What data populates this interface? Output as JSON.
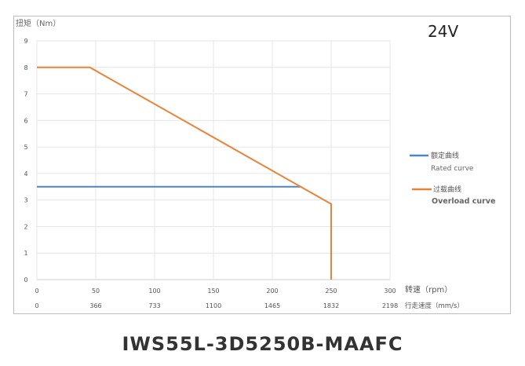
{
  "chart_data": {
    "type": "line",
    "title": "",
    "voltage_label": "24V",
    "ylabel": "扭矩（Nm）",
    "xlabel": "转速（rpm）",
    "x2label": "行走速度（mm/s）",
    "xlim": [
      0,
      300
    ],
    "ylim": [
      0,
      9
    ],
    "x_ticks": [
      "0",
      "50",
      "100",
      "150",
      "200",
      "250",
      "300"
    ],
    "x2_ticks": [
      "0",
      "366",
      "733",
      "1100",
      "1465",
      "1832",
      "2198"
    ],
    "y_ticks": [
      "0",
      "1",
      "2",
      "3",
      "4",
      "5",
      "6",
      "7",
      "8",
      "9"
    ],
    "grid": true,
    "legend_placement": "right",
    "series": [
      {
        "name": "额定曲线",
        "name_en": "Rated curve",
        "color": "#4a86c8",
        "x": [
          0,
          225
        ],
        "y": [
          3.5,
          3.5
        ]
      },
      {
        "name": "过载曲线",
        "name_en": "Overload curve",
        "color": "#e8843a",
        "x": [
          0,
          45,
          250,
          250
        ],
        "y": [
          8,
          8,
          2.85,
          0
        ]
      }
    ]
  },
  "model_name": "IWS55L-3D5250B-MAAFC"
}
